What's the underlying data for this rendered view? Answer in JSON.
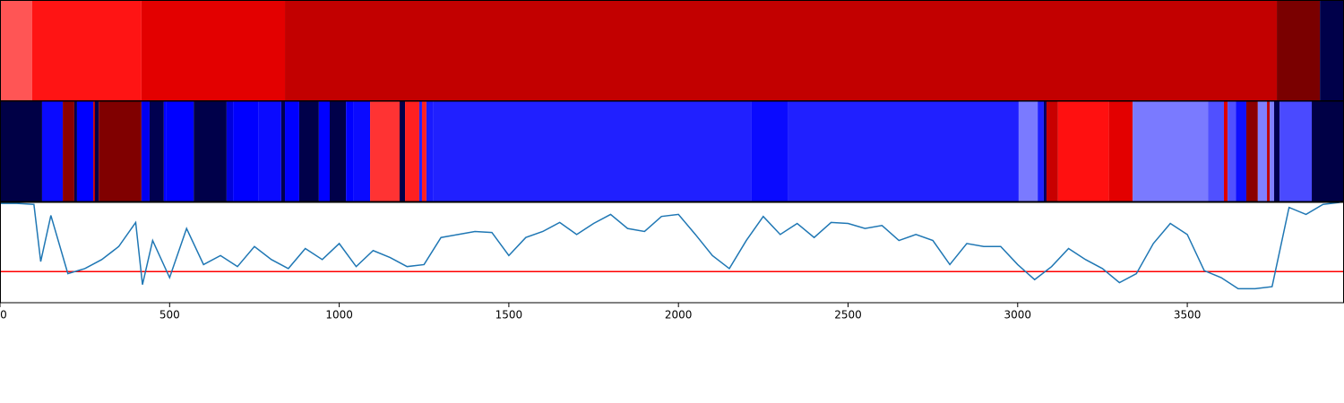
{
  "chart_data": [
    {
      "type": "band",
      "xlim": [
        0,
        3962
      ],
      "edges": [
        0,
        95,
        417,
        840,
        3764,
        3891,
        3962
      ],
      "colors": [
        "#ff5555",
        "#ff1414",
        "#e30000",
        "#c20000",
        "#7a0000",
        "#00004a"
      ]
    },
    {
      "type": "band",
      "xlim": [
        0,
        3962
      ],
      "edges": [
        0,
        124,
        185,
        219,
        227,
        275,
        280,
        291,
        417,
        441,
        483,
        491,
        571,
        668,
        687,
        761,
        829,
        840,
        882,
        940,
        972,
        1020,
        1043,
        1091,
        1178,
        1194,
        1236,
        1244,
        1257,
        1276,
        2214,
        2324,
        3003,
        3059,
        3077,
        3085,
        3119,
        3269,
        3339,
        3561,
        3608,
        3619,
        3643,
        3674,
        3708,
        3735,
        3743,
        3756,
        3772,
        3867,
        3962
      ],
      "colors": [
        "#000046",
        "#0a0aff",
        "#8b0000",
        "#00004a",
        "#0000ff",
        "#c00000",
        "#00004a",
        "#800000",
        "#0000f0",
        "#000050",
        "#0000ff",
        "#0000ff",
        "#00004a",
        "#0000dd",
        "#0000ff",
        "#0a0aff",
        "#000050",
        "#0000ff",
        "#00004a",
        "#0000ff",
        "#00004a",
        "#0000ff",
        "#0a0aff",
        "#ff3333",
        "#00004a",
        "#ff2020",
        "#2222ff",
        "#ff2020",
        "#1a1aff",
        "#2020ff",
        "#0a0aff",
        "#2020ff",
        "#7a7aff",
        "#2020ff",
        "#000060",
        "#c80000",
        "#ff1010",
        "#e30000",
        "#7a7aff",
        "#5050ff",
        "#e00000",
        "#5050ff",
        "#1010ff",
        "#8b0000",
        "#8080ff",
        "#c00000",
        "#8080ff",
        "#000050",
        "#4a4aff",
        "#000046"
      ]
    },
    {
      "type": "line",
      "xlim": [
        0,
        3962
      ],
      "ylim": [
        0,
        1
      ],
      "color": "#1f77b4",
      "threshold": 0.31,
      "threshold_color": "#ff0000",
      "xticks": [
        0,
        500,
        1000,
        1500,
        2000,
        2500,
        3000,
        3500
      ],
      "x": [
        0,
        50,
        100,
        120,
        150,
        200,
        250,
        300,
        350,
        400,
        420,
        450,
        500,
        550,
        600,
        650,
        700,
        750,
        800,
        850,
        900,
        950,
        1000,
        1050,
        1100,
        1150,
        1200,
        1250,
        1300,
        1350,
        1400,
        1450,
        1500,
        1550,
        1600,
        1650,
        1700,
        1750,
        1800,
        1850,
        1900,
        1950,
        2000,
        2050,
        2100,
        2150,
        2200,
        2250,
        2300,
        2350,
        2400,
        2450,
        2500,
        2550,
        2600,
        2650,
        2700,
        2750,
        2800,
        2850,
        2900,
        2950,
        3000,
        3050,
        3100,
        3150,
        3200,
        3250,
        3300,
        3350,
        3400,
        3450,
        3500,
        3550,
        3600,
        3650,
        3700,
        3750,
        3800,
        3850,
        3900,
        3950
      ],
      "values": [
        0.99,
        0.99,
        0.98,
        0.41,
        0.87,
        0.29,
        0.34,
        0.43,
        0.56,
        0.8,
        0.18,
        0.62,
        0.25,
        0.74,
        0.38,
        0.47,
        0.36,
        0.56,
        0.43,
        0.34,
        0.54,
        0.43,
        0.59,
        0.36,
        0.52,
        0.45,
        0.36,
        0.38,
        0.65,
        0.68,
        0.71,
        0.7,
        0.47,
        0.65,
        0.71,
        0.8,
        0.68,
        0.79,
        0.88,
        0.74,
        0.71,
        0.86,
        0.88,
        0.68,
        0.47,
        0.34,
        0.62,
        0.86,
        0.68,
        0.79,
        0.65,
        0.8,
        0.79,
        0.74,
        0.77,
        0.62,
        0.68,
        0.62,
        0.38,
        0.59,
        0.56,
        0.56,
        0.38,
        0.23,
        0.36,
        0.54,
        0.43,
        0.34,
        0.2,
        0.29,
        0.59,
        0.79,
        0.68,
        0.32,
        0.25,
        0.14,
        0.14,
        0.16,
        0.95,
        0.88,
        0.98,
        1.0
      ]
    }
  ]
}
